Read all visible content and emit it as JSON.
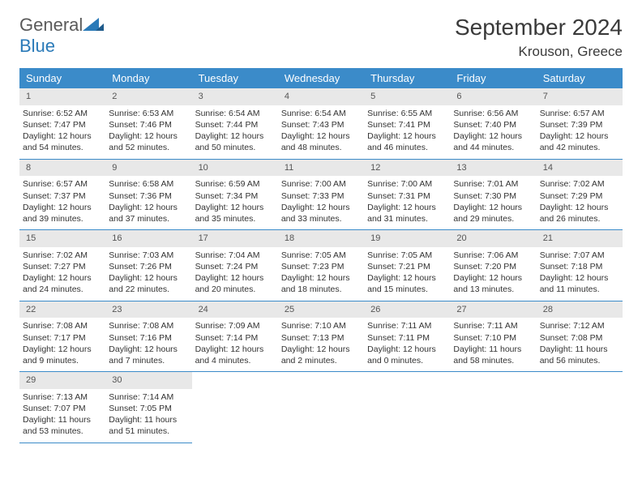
{
  "brand": {
    "part1": "General",
    "part2": "Blue"
  },
  "title": "September 2024",
  "location": "Krouson, Greece",
  "colors": {
    "header_bg": "#3b8bc9",
    "header_fg": "#ffffff",
    "daynum_bg": "#e8e8e8",
    "border": "#3b8bc9",
    "text": "#333333",
    "logo_gray": "#5a5a5a",
    "logo_blue": "#2a7ab8"
  },
  "weekdays": [
    "Sunday",
    "Monday",
    "Tuesday",
    "Wednesday",
    "Thursday",
    "Friday",
    "Saturday"
  ],
  "days": [
    {
      "n": "1",
      "sr": "6:52 AM",
      "ss": "7:47 PM",
      "dl": "12 hours and 54 minutes."
    },
    {
      "n": "2",
      "sr": "6:53 AM",
      "ss": "7:46 PM",
      "dl": "12 hours and 52 minutes."
    },
    {
      "n": "3",
      "sr": "6:54 AM",
      "ss": "7:44 PM",
      "dl": "12 hours and 50 minutes."
    },
    {
      "n": "4",
      "sr": "6:54 AM",
      "ss": "7:43 PM",
      "dl": "12 hours and 48 minutes."
    },
    {
      "n": "5",
      "sr": "6:55 AM",
      "ss": "7:41 PM",
      "dl": "12 hours and 46 minutes."
    },
    {
      "n": "6",
      "sr": "6:56 AM",
      "ss": "7:40 PM",
      "dl": "12 hours and 44 minutes."
    },
    {
      "n": "7",
      "sr": "6:57 AM",
      "ss": "7:39 PM",
      "dl": "12 hours and 42 minutes."
    },
    {
      "n": "8",
      "sr": "6:57 AM",
      "ss": "7:37 PM",
      "dl": "12 hours and 39 minutes."
    },
    {
      "n": "9",
      "sr": "6:58 AM",
      "ss": "7:36 PM",
      "dl": "12 hours and 37 minutes."
    },
    {
      "n": "10",
      "sr": "6:59 AM",
      "ss": "7:34 PM",
      "dl": "12 hours and 35 minutes."
    },
    {
      "n": "11",
      "sr": "7:00 AM",
      "ss": "7:33 PM",
      "dl": "12 hours and 33 minutes."
    },
    {
      "n": "12",
      "sr": "7:00 AM",
      "ss": "7:31 PM",
      "dl": "12 hours and 31 minutes."
    },
    {
      "n": "13",
      "sr": "7:01 AM",
      "ss": "7:30 PM",
      "dl": "12 hours and 29 minutes."
    },
    {
      "n": "14",
      "sr": "7:02 AM",
      "ss": "7:29 PM",
      "dl": "12 hours and 26 minutes."
    },
    {
      "n": "15",
      "sr": "7:02 AM",
      "ss": "7:27 PM",
      "dl": "12 hours and 24 minutes."
    },
    {
      "n": "16",
      "sr": "7:03 AM",
      "ss": "7:26 PM",
      "dl": "12 hours and 22 minutes."
    },
    {
      "n": "17",
      "sr": "7:04 AM",
      "ss": "7:24 PM",
      "dl": "12 hours and 20 minutes."
    },
    {
      "n": "18",
      "sr": "7:05 AM",
      "ss": "7:23 PM",
      "dl": "12 hours and 18 minutes."
    },
    {
      "n": "19",
      "sr": "7:05 AM",
      "ss": "7:21 PM",
      "dl": "12 hours and 15 minutes."
    },
    {
      "n": "20",
      "sr": "7:06 AM",
      "ss": "7:20 PM",
      "dl": "12 hours and 13 minutes."
    },
    {
      "n": "21",
      "sr": "7:07 AM",
      "ss": "7:18 PM",
      "dl": "12 hours and 11 minutes."
    },
    {
      "n": "22",
      "sr": "7:08 AM",
      "ss": "7:17 PM",
      "dl": "12 hours and 9 minutes."
    },
    {
      "n": "23",
      "sr": "7:08 AM",
      "ss": "7:16 PM",
      "dl": "12 hours and 7 minutes."
    },
    {
      "n": "24",
      "sr": "7:09 AM",
      "ss": "7:14 PM",
      "dl": "12 hours and 4 minutes."
    },
    {
      "n": "25",
      "sr": "7:10 AM",
      "ss": "7:13 PM",
      "dl": "12 hours and 2 minutes."
    },
    {
      "n": "26",
      "sr": "7:11 AM",
      "ss": "7:11 PM",
      "dl": "12 hours and 0 minutes."
    },
    {
      "n": "27",
      "sr": "7:11 AM",
      "ss": "7:10 PM",
      "dl": "11 hours and 58 minutes."
    },
    {
      "n": "28",
      "sr": "7:12 AM",
      "ss": "7:08 PM",
      "dl": "11 hours and 56 minutes."
    },
    {
      "n": "29",
      "sr": "7:13 AM",
      "ss": "7:07 PM",
      "dl": "11 hours and 53 minutes."
    },
    {
      "n": "30",
      "sr": "7:14 AM",
      "ss": "7:05 PM",
      "dl": "11 hours and 51 minutes."
    }
  ],
  "labels": {
    "sunrise": "Sunrise: ",
    "sunset": "Sunset: ",
    "daylight": "Daylight: "
  },
  "trailing_empty": 5
}
